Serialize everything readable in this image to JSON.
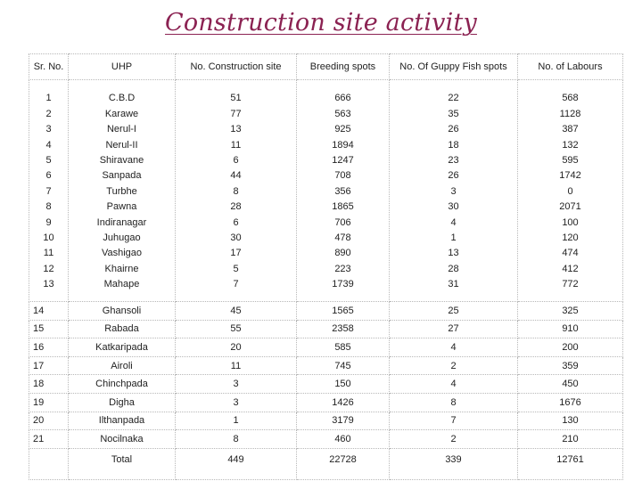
{
  "title": "Construction site activity",
  "columns": [
    "Sr. No.",
    "UHP",
    "No. Construction site",
    "Breeding spots",
    "No. Of Guppy Fish spots",
    "No. of Labours"
  ],
  "block_rows": [
    [
      "1",
      "C.B.D",
      "51",
      "666",
      "22",
      "568"
    ],
    [
      "2",
      "Karawe",
      "77",
      "563",
      "35",
      "1128"
    ],
    [
      "3",
      "Nerul-I",
      "13",
      "925",
      "26",
      "387"
    ],
    [
      "4",
      "Nerul-II",
      "11",
      "1894",
      "18",
      "132"
    ],
    [
      "5",
      "Shiravane",
      "6",
      "1247",
      "23",
      "595"
    ],
    [
      "6",
      "Sanpada",
      "44",
      "708",
      "26",
      "1742"
    ],
    [
      "7",
      "Turbhe",
      "8",
      "356",
      "3",
      "0"
    ],
    [
      "8",
      "Pawna",
      "28",
      "1865",
      "30",
      "2071"
    ],
    [
      "9",
      "Indiranagar",
      "6",
      "706",
      "4",
      "100"
    ],
    [
      "10",
      "Juhugao",
      "30",
      "478",
      "1",
      "120"
    ],
    [
      "11",
      "Vashigao",
      "17",
      "890",
      "13",
      "474"
    ],
    [
      "12",
      "Khairne",
      "5",
      "223",
      "28",
      "412"
    ],
    [
      "13",
      "Mahape",
      "7",
      "1739",
      "31",
      "772"
    ]
  ],
  "rows": [
    [
      "14",
      "Ghansoli",
      "45",
      "1565",
      "25",
      "325"
    ],
    [
      "15",
      "Rabada",
      "55",
      "2358",
      "27",
      "910"
    ],
    [
      "16",
      "Katkaripada",
      "20",
      "585",
      "4",
      "200"
    ],
    [
      "17",
      "Airoli",
      "11",
      "745",
      "2",
      "359"
    ],
    [
      "18",
      "Chinchpada",
      "3",
      "150",
      "4",
      "450"
    ],
    [
      "19",
      "Digha",
      "3",
      "1426",
      "8",
      "1676"
    ],
    [
      "20",
      "Ilthanpada",
      "1",
      "3179",
      "7",
      "130"
    ],
    [
      "21",
      "Nocilnaka",
      "8",
      "460",
      "2",
      "210"
    ]
  ],
  "total": {
    "label": "Total",
    "construction_sites": "449",
    "breeding_spots": "22728",
    "guppy_fish_spots": "339",
    "labours": "12761"
  }
}
